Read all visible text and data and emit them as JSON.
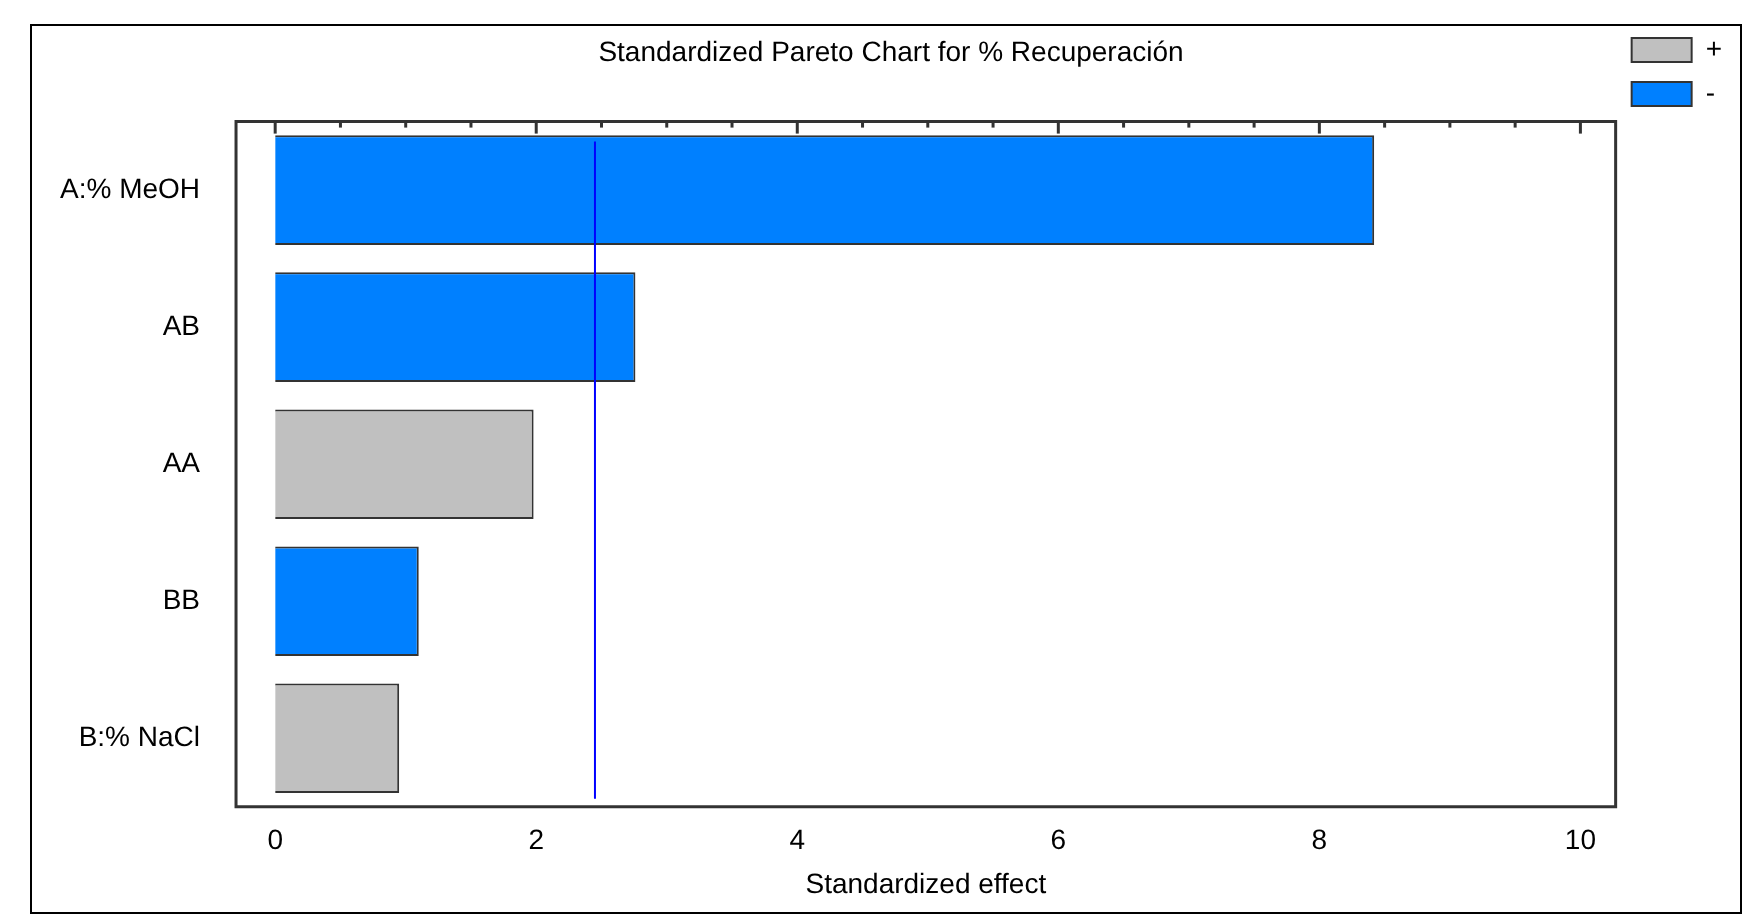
{
  "chart_data": {
    "type": "bar",
    "orientation": "horizontal",
    "title": "Standardized Pareto Chart for % Recuperación",
    "xlabel": "Standardized effect",
    "categories": [
      "A:% MeOH",
      "AB",
      "AA",
      "BB",
      "B:% NaCl"
    ],
    "series": [
      {
        "name": "+",
        "color": "#c0c0c0",
        "values": [
          null,
          null,
          1.98,
          null,
          0.95
        ]
      },
      {
        "name": "-",
        "color": "#0080ff",
        "values": [
          8.42,
          2.76,
          null,
          1.1,
          null
        ]
      }
    ],
    "xlim": [
      -0.3,
      10.27
    ],
    "xticks": [
      0,
      {
        "value": 0.5,
        "label": null
      },
      {
        "value": 1,
        "label": null
      },
      {
        "value": 1.5,
        "label": null
      },
      2,
      {
        "value": 2.5,
        "label": null
      },
      {
        "value": 3,
        "label": null
      },
      {
        "value": 3.5,
        "label": null
      },
      4,
      {
        "value": 4.5,
        "label": null
      },
      {
        "value": 5,
        "label": null
      },
      {
        "value": 5.5,
        "label": null
      },
      6,
      {
        "value": 6.5,
        "label": null
      },
      {
        "value": 7,
        "label": null
      },
      {
        "value": 7.5,
        "label": null
      },
      8,
      {
        "value": 8.5,
        "label": null
      },
      {
        "value": 9,
        "label": null
      },
      {
        "value": 9.5,
        "label": null
      },
      10
    ],
    "ref_lines": [
      {
        "axis": "x",
        "value": 2.45,
        "color": "#0000ff"
      }
    ],
    "grid": false,
    "legend": "top right"
  }
}
